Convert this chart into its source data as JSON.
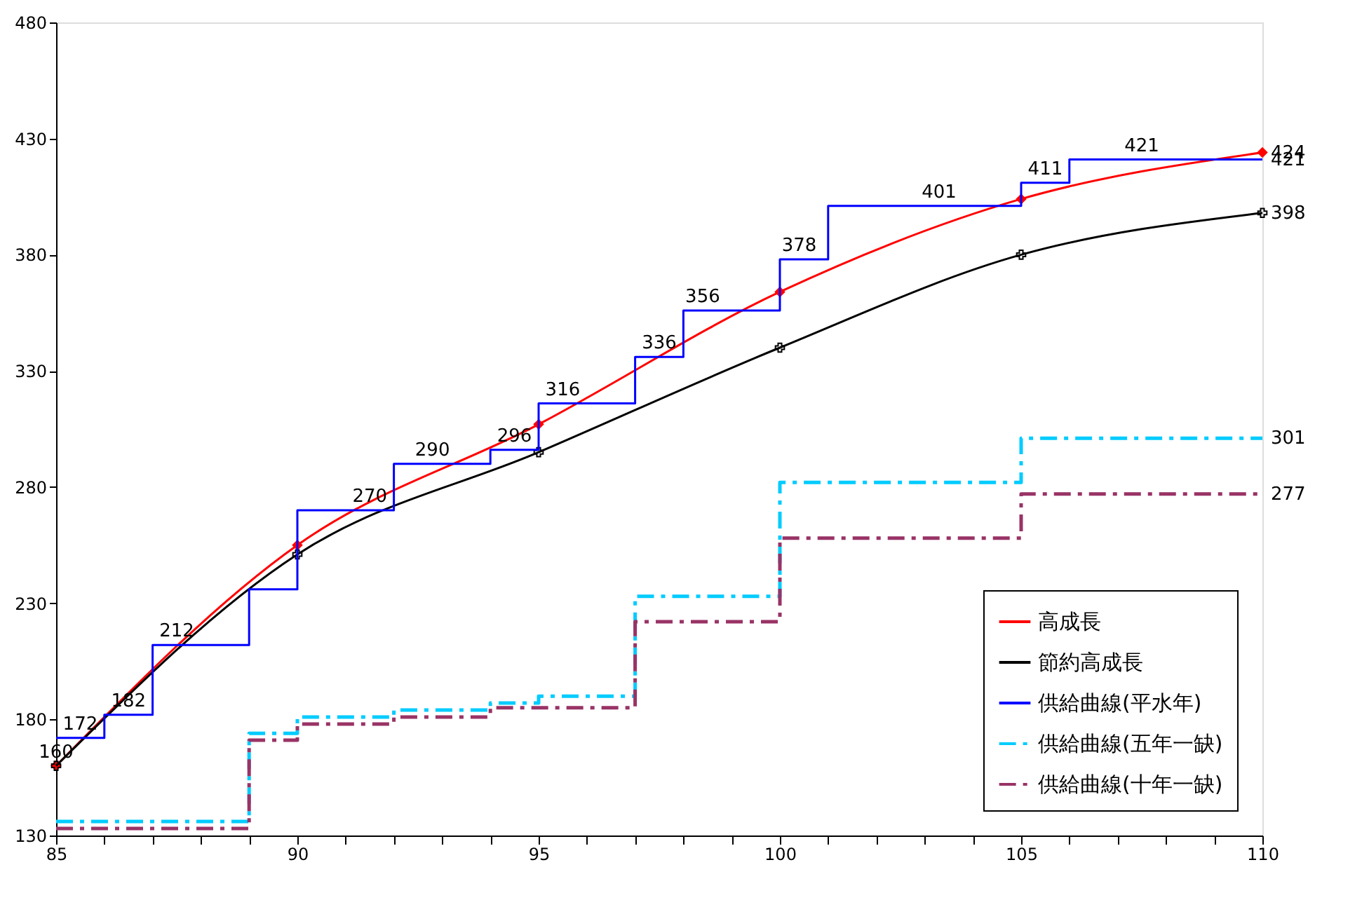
{
  "chart_data": {
    "type": "line",
    "xlim": [
      85,
      110
    ],
    "ylim": [
      130,
      480
    ],
    "xticks": [
      85,
      {
        "value": 86,
        "label": null
      },
      {
        "value": 87,
        "label": null
      },
      {
        "value": 88,
        "label": null
      },
      {
        "value": 89,
        "label": null
      },
      90,
      {
        "value": 91,
        "label": null
      },
      {
        "value": 92,
        "label": null
      },
      {
        "value": 93,
        "label": null
      },
      {
        "value": 94,
        "label": null
      },
      95,
      {
        "value": 96,
        "label": null
      },
      {
        "value": 97,
        "label": null
      },
      {
        "value": 98,
        "label": null
      },
      {
        "value": 99,
        "label": null
      },
      100,
      {
        "value": 101,
        "label": null
      },
      {
        "value": 102,
        "label": null
      },
      {
        "value": 103,
        "label": null
      },
      {
        "value": 104,
        "label": null
      },
      105,
      {
        "value": 106,
        "label": null
      },
      {
        "value": 107,
        "label": null
      },
      {
        "value": 108,
        "label": null
      },
      {
        "value": 109,
        "label": null
      },
      110
    ],
    "yticks": [
      130,
      180,
      230,
      280,
      330,
      380,
      430,
      480
    ],
    "grid": false,
    "legend": "bottom right",
    "series": [
      {
        "name": "高成長",
        "color": "#ff0000",
        "type": "line",
        "marker": "diamond",
        "line_style": "solid",
        "x": [
          85,
          90,
          95,
          100,
          105,
          110
        ],
        "values": [
          160,
          255,
          307,
          364,
          404,
          424
        ]
      },
      {
        "name": "節約高成長",
        "color": "#000000",
        "type": "line",
        "marker": "cross",
        "line_style": "solid",
        "x": [
          85,
          90,
          95,
          100,
          105,
          110
        ],
        "values": [
          160,
          251,
          295,
          340,
          380,
          398
        ]
      },
      {
        "name": "供給曲線(平水年)",
        "color": "#0000ff",
        "type": "step",
        "marker": "none",
        "line_style": "solid",
        "x": [
          85,
          86,
          87,
          89,
          90,
          92,
          94,
          95,
          97,
          98,
          100,
          101,
          105,
          106,
          110
        ],
        "values": [
          172,
          182,
          212,
          236,
          270,
          290,
          296,
          316,
          336,
          356,
          378,
          401,
          411,
          421,
          421
        ]
      },
      {
        "name": "供給曲線(五年一缺)",
        "color": "#00ccff",
        "type": "step",
        "marker": "none",
        "line_style": "dashed",
        "x": [
          85,
          89,
          90,
          92,
          94,
          95,
          97,
          100,
          105,
          110
        ],
        "values": [
          136,
          174,
          181,
          184,
          187,
          190,
          233,
          282,
          301,
          301
        ]
      },
      {
        "name": "供給曲線(十年一缺)",
        "color": "#993366",
        "type": "step",
        "marker": "none",
        "line_style": "dashed",
        "x": [
          85,
          89,
          90,
          92,
          94,
          95,
          97,
          100,
          105,
          110
        ],
        "values": [
          133,
          171,
          178,
          181,
          185,
          185,
          222,
          258,
          277,
          277
        ]
      }
    ],
    "annotations": [
      {
        "text": "160",
        "x": 85,
        "y": 160
      },
      {
        "text": "172",
        "x": 85.5,
        "y": 172
      },
      {
        "text": "182",
        "x": 86.5,
        "y": 182
      },
      {
        "text": "212",
        "x": 87.5,
        "y": 212
      },
      {
        "text": "270",
        "x": 91.5,
        "y": 270
      },
      {
        "text": "290",
        "x": 92.8,
        "y": 290
      },
      {
        "text": "296",
        "x": 94.5,
        "y": 296
      },
      {
        "text": "316",
        "x": 95.5,
        "y": 316
      },
      {
        "text": "336",
        "x": 97.5,
        "y": 336
      },
      {
        "text": "356",
        "x": 98.4,
        "y": 356
      },
      {
        "text": "378",
        "x": 100.4,
        "y": 378
      },
      {
        "text": "401",
        "x": 103.3,
        "y": 401
      },
      {
        "text": "411",
        "x": 105.5,
        "y": 411
      },
      {
        "text": "421",
        "x": 107.5,
        "y": 421
      },
      {
        "text": "424",
        "x": 110,
        "y": 424
      },
      {
        "text": "421",
        "x": 110,
        "y": 421
      },
      {
        "text": "398",
        "x": 110,
        "y": 398
      },
      {
        "text": "301",
        "x": 110,
        "y": 301
      },
      {
        "text": "277",
        "x": 110,
        "y": 277
      }
    ]
  }
}
